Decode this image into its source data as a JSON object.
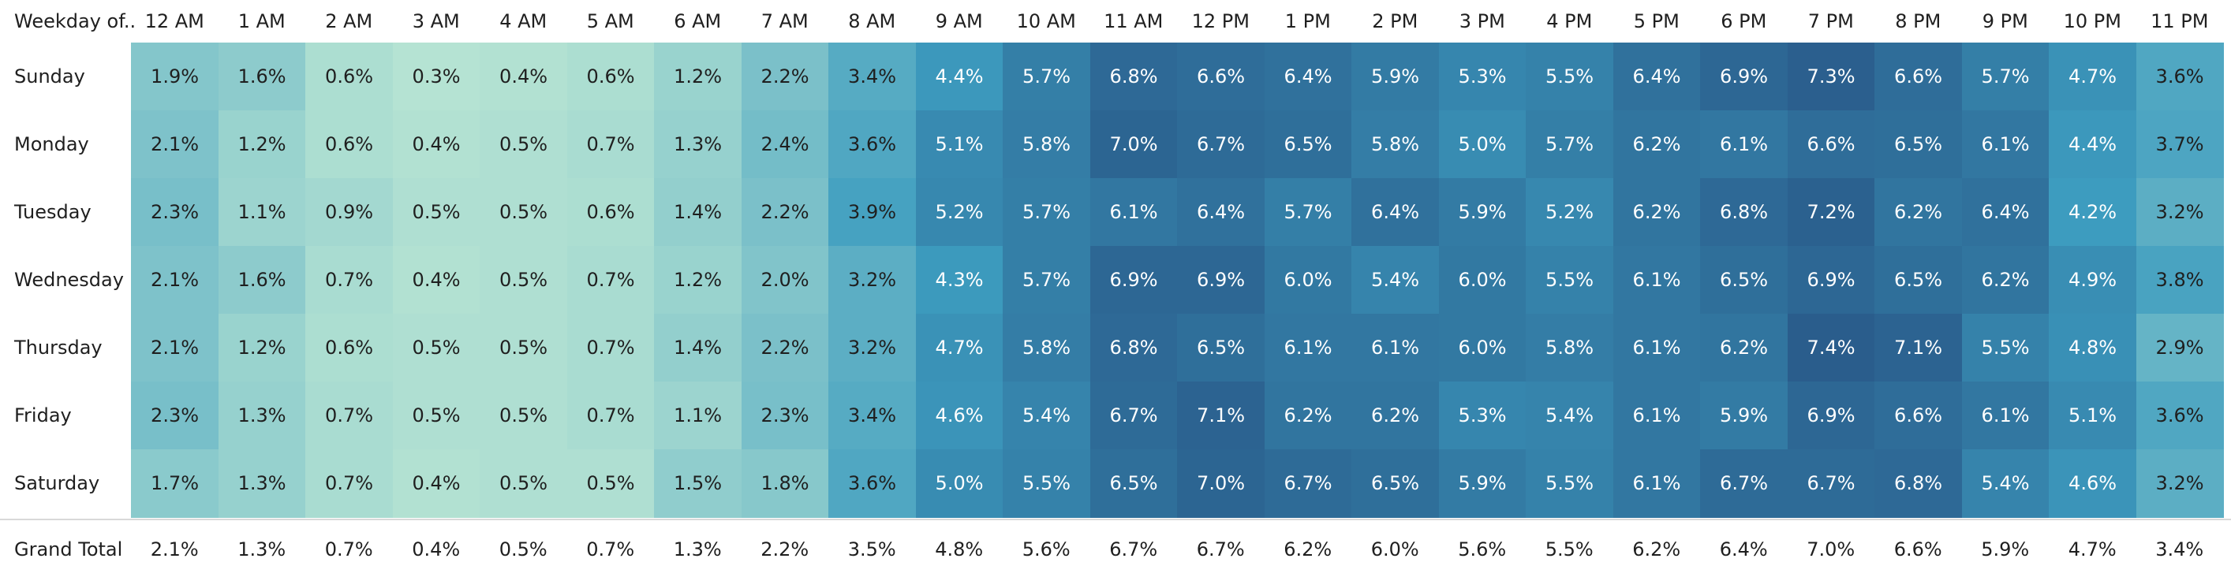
{
  "chart_data": {
    "type": "heatmap",
    "row_header": "Weekday of..",
    "columns": [
      "12 AM",
      "1 AM",
      "2 AM",
      "3 AM",
      "4 AM",
      "5 AM",
      "6 AM",
      "7 AM",
      "8 AM",
      "9 AM",
      "10 AM",
      "11 AM",
      "12 PM",
      "1 PM",
      "2 PM",
      "3 PM",
      "4 PM",
      "5 PM",
      "6 PM",
      "7 PM",
      "8 PM",
      "9 PM",
      "10 PM",
      "11 PM"
    ],
    "rows": [
      "Sunday",
      "Monday",
      "Tuesday",
      "Wednesday",
      "Thursday",
      "Friday",
      "Saturday"
    ],
    "values": [
      [
        "1.9%",
        "1.6%",
        "0.6%",
        "0.3%",
        "0.4%",
        "0.6%",
        "1.2%",
        "2.2%",
        "3.4%",
        "4.4%",
        "5.7%",
        "6.8%",
        "6.6%",
        "6.4%",
        "5.9%",
        "5.3%",
        "5.5%",
        "6.4%",
        "6.9%",
        "7.3%",
        "6.6%",
        "5.7%",
        "4.7%",
        "3.6%"
      ],
      [
        "2.1%",
        "1.2%",
        "0.6%",
        "0.4%",
        "0.5%",
        "0.7%",
        "1.3%",
        "2.4%",
        "3.6%",
        "5.1%",
        "5.8%",
        "7.0%",
        "6.7%",
        "6.5%",
        "5.8%",
        "5.0%",
        "5.7%",
        "6.2%",
        "6.1%",
        "6.6%",
        "6.5%",
        "6.1%",
        "4.4%",
        "3.7%"
      ],
      [
        "2.3%",
        "1.1%",
        "0.9%",
        "0.5%",
        "0.5%",
        "0.6%",
        "1.4%",
        "2.2%",
        "3.9%",
        "5.2%",
        "5.7%",
        "6.1%",
        "6.4%",
        "5.7%",
        "6.4%",
        "5.9%",
        "5.2%",
        "6.2%",
        "6.8%",
        "7.2%",
        "6.2%",
        "6.4%",
        "4.2%",
        "3.2%"
      ],
      [
        "2.1%",
        "1.6%",
        "0.7%",
        "0.4%",
        "0.5%",
        "0.7%",
        "1.2%",
        "2.0%",
        "3.2%",
        "4.3%",
        "5.7%",
        "6.9%",
        "6.9%",
        "6.0%",
        "5.4%",
        "6.0%",
        "5.5%",
        "6.1%",
        "6.5%",
        "6.9%",
        "6.5%",
        "6.2%",
        "4.9%",
        "3.8%"
      ],
      [
        "2.1%",
        "1.2%",
        "0.6%",
        "0.5%",
        "0.5%",
        "0.7%",
        "1.4%",
        "2.2%",
        "3.2%",
        "4.7%",
        "5.8%",
        "6.8%",
        "6.5%",
        "6.1%",
        "6.1%",
        "6.0%",
        "5.8%",
        "6.1%",
        "6.2%",
        "7.4%",
        "7.1%",
        "5.5%",
        "4.8%",
        "2.9%"
      ],
      [
        "2.3%",
        "1.3%",
        "0.7%",
        "0.5%",
        "0.5%",
        "0.7%",
        "1.1%",
        "2.3%",
        "3.4%",
        "4.6%",
        "5.4%",
        "6.7%",
        "7.1%",
        "6.2%",
        "6.2%",
        "5.3%",
        "5.4%",
        "6.1%",
        "5.9%",
        "6.9%",
        "6.6%",
        "6.1%",
        "5.1%",
        "3.6%"
      ],
      [
        "1.7%",
        "1.3%",
        "0.7%",
        "0.4%",
        "0.5%",
        "0.5%",
        "1.5%",
        "1.8%",
        "3.6%",
        "5.0%",
        "5.5%",
        "6.5%",
        "7.0%",
        "6.7%",
        "6.5%",
        "5.9%",
        "5.5%",
        "6.1%",
        "6.7%",
        "6.7%",
        "6.8%",
        "5.4%",
        "4.6%",
        "3.2%"
      ]
    ],
    "grand_total_label": "Grand Total",
    "grand_total": [
      "2.1%",
      "1.3%",
      "0.7%",
      "0.4%",
      "0.5%",
      "0.7%",
      "1.3%",
      "2.2%",
      "3.5%",
      "4.8%",
      "5.6%",
      "6.7%",
      "6.7%",
      "6.2%",
      "6.0%",
      "5.6%",
      "5.5%",
      "6.2%",
      "6.4%",
      "7.0%",
      "6.6%",
      "5.9%",
      "4.7%",
      "3.4%"
    ],
    "color_scale": {
      "low": "#b5e3d3",
      "mid": "#3d9cbf",
      "high": "#2a5d8c",
      "dark_text": "#1f1f1f",
      "light_text": "#ffffff"
    }
  }
}
